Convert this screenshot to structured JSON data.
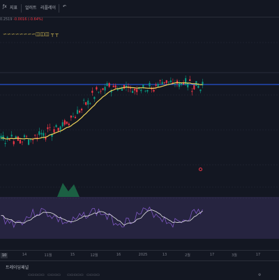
{
  "toolbar": {
    "item1": "지표",
    "item2": "얼러트",
    "item3": "리플레이",
    "undo_icon": "undo-icon"
  },
  "legend": {
    "value": "0.2519",
    "change": "-0.0016 (-0.64%)",
    "indicators": [
      "𝄞",
      "ℵ",
      "𝄞",
      "ℵ",
      "ℵ",
      "ℵ",
      "▭",
      "▭",
      "T",
      "T"
    ]
  },
  "time_axis": {
    "labels": [
      "10",
      "14",
      "11월",
      "15",
      "12월",
      "16",
      "2025",
      "13",
      "2월",
      "17",
      "3월",
      "17"
    ],
    "active_label": "10"
  },
  "bottom": {
    "tab": "트레이딩패널",
    "items": [
      "",
      "",
      "",
      "",
      ""
    ]
  },
  "colors": {
    "up": "#089981",
    "down": "#f23645",
    "ma": "#f2d55a",
    "line": "#2962ff",
    "osc_fill": "#4a3d78"
  },
  "chart_data": {
    "type": "line",
    "series": [
      {
        "values": [
          0.2,
          0.21,
          0.19,
          0.2,
          0.22,
          0.24,
          0.26,
          0.3,
          0.36,
          0.42,
          0.47,
          0.5,
          0.52,
          0.5,
          0.49,
          0.51,
          0.5,
          0.52,
          0.54,
          0.53,
          0.52,
          0.51
        ]
      }
    ]
  }
}
